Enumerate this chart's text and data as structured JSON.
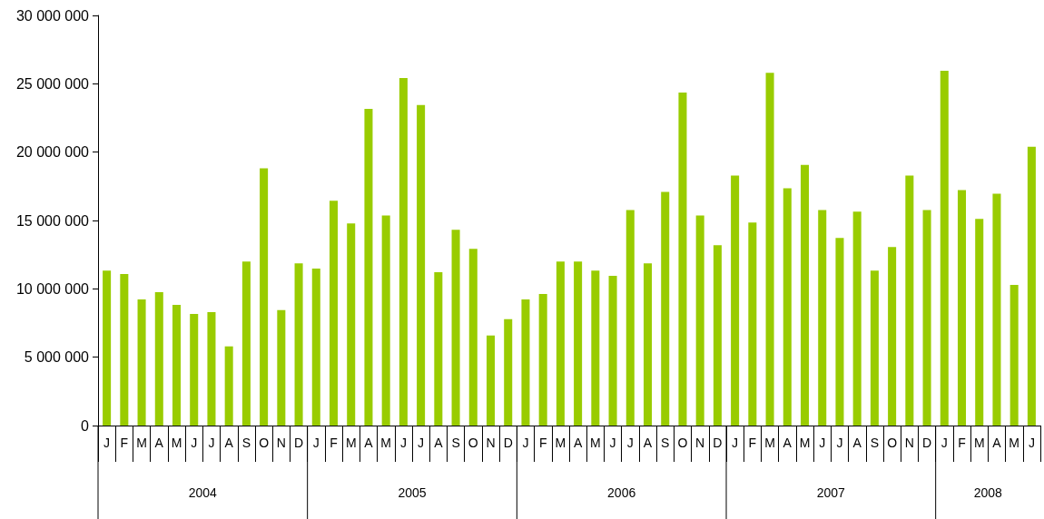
{
  "chart_data": {
    "type": "bar",
    "categories": [
      "J",
      "F",
      "M",
      "A",
      "M",
      "J",
      "J",
      "A",
      "S",
      "O",
      "N",
      "D",
      "J",
      "F",
      "M",
      "A",
      "M",
      "J",
      "J",
      "A",
      "S",
      "O",
      "N",
      "D",
      "J",
      "F",
      "M",
      "A",
      "M",
      "J",
      "J",
      "A",
      "S",
      "O",
      "N",
      "D",
      "J",
      "F",
      "M",
      "A",
      "M",
      "J",
      "J",
      "A",
      "S",
      "O",
      "N",
      "D",
      "J",
      "F",
      "M",
      "A",
      "M",
      "J"
    ],
    "values": [
      11340000,
      11080000,
      9230000,
      9760000,
      8830000,
      8170000,
      8300000,
      5790000,
      12000000,
      18810000,
      8440000,
      11870000,
      11480000,
      16450000,
      14780000,
      23170000,
      15370000,
      25420000,
      23440000,
      11210000,
      14320000,
      12930000,
      6590000,
      7780000,
      9230000,
      9630000,
      12000000,
      12000000,
      11340000,
      10950000,
      15770000,
      11870000,
      17090000,
      24360000,
      15370000,
      13190000,
      18280000,
      14850000,
      25810000,
      17360000,
      19070000,
      15770000,
      13720000,
      15640000,
      11340000,
      13060000,
      18280000,
      15770000,
      25950000,
      17220000,
      15110000,
      16960000,
      10290000,
      20400000
    ],
    "color": "#99cc00",
    "ylim": [
      0,
      30000000
    ],
    "yticks": [
      {
        "value": 0,
        "label": "0"
      },
      {
        "value": 5000000,
        "label": "5 000 000"
      },
      {
        "value": 10000000,
        "label": "10 000 000"
      },
      {
        "value": 15000000,
        "label": "15 000 000"
      },
      {
        "value": 20000000,
        "label": "20 000 000"
      },
      {
        "value": 25000000,
        "label": "25 000 000"
      },
      {
        "value": 30000000,
        "label": "30 000 000"
      }
    ],
    "annotations": [
      "2004",
      "2005",
      "2006",
      "2007",
      "2008"
    ],
    "grid": false
  }
}
